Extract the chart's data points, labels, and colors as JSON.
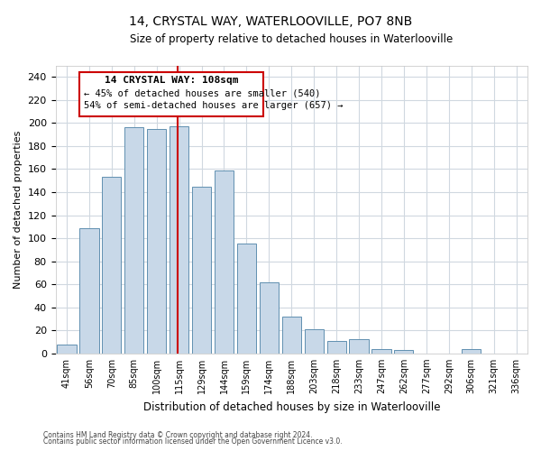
{
  "title": "14, CRYSTAL WAY, WATERLOOVILLE, PO7 8NB",
  "subtitle": "Size of property relative to detached houses in Waterlooville",
  "xlabel": "Distribution of detached houses by size in Waterlooville",
  "ylabel": "Number of detached properties",
  "bar_labels": [
    "41sqm",
    "56sqm",
    "70sqm",
    "85sqm",
    "100sqm",
    "115sqm",
    "129sqm",
    "144sqm",
    "159sqm",
    "174sqm",
    "188sqm",
    "203sqm",
    "218sqm",
    "233sqm",
    "247sqm",
    "262sqm",
    "277sqm",
    "292sqm",
    "306sqm",
    "321sqm",
    "336sqm"
  ],
  "bar_values": [
    8,
    109,
    153,
    196,
    195,
    197,
    145,
    159,
    95,
    62,
    32,
    21,
    11,
    12,
    4,
    3,
    0,
    0,
    4,
    0,
    0
  ],
  "bar_color": "#c8d8e8",
  "bar_edge_color": "#6090b0",
  "ylim": [
    0,
    250
  ],
  "yticks": [
    0,
    20,
    40,
    60,
    80,
    100,
    120,
    140,
    160,
    180,
    200,
    220,
    240
  ],
  "property_line_label": "14 CRYSTAL WAY: 108sqm",
  "annotation_line1": "← 45% of detached houses are smaller (540)",
  "annotation_line2": "54% of semi-detached houses are larger (657) →",
  "box_color": "#ffffff",
  "box_edge_color": "#cc0000",
  "line_color": "#cc0000",
  "footer1": "Contains HM Land Registry data © Crown copyright and database right 2024.",
  "footer2": "Contains public sector information licensed under the Open Government Licence v3.0.",
  "background_color": "#ffffff",
  "grid_color": "#d0d8e0"
}
